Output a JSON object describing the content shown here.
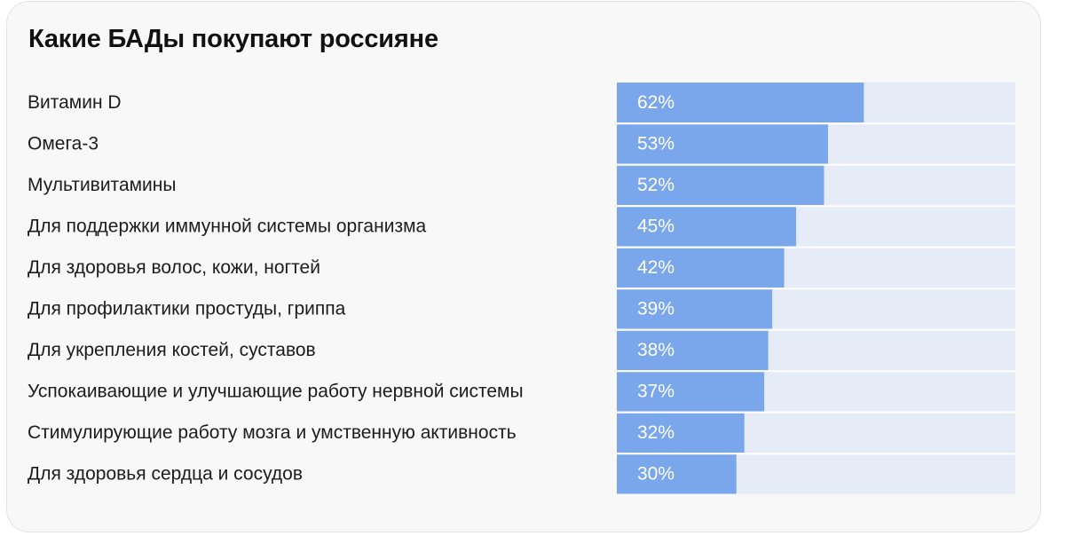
{
  "chart_data": {
    "type": "bar",
    "orientation": "horizontal",
    "title": "Какие БАДы покупают россияне",
    "categories": [
      "Витамин D",
      "Омега-3",
      "Мультивитамины",
      "Для поддержки иммунной системы организма",
      "Для здоровья волос, кожи, ногтей",
      "Для профилактики простуды, гриппа",
      "Для укрепления костей, суставов",
      "Успокаивающие и улучшающие работу нервной системы",
      "Стимулирующие работу мозга и умственную активность",
      "Для здоровья сердца и сосудов"
    ],
    "values": [
      62,
      53,
      52,
      45,
      42,
      39,
      38,
      37,
      32,
      30
    ],
    "value_labels": [
      "62%",
      "53%",
      "52%",
      "45%",
      "42%",
      "39%",
      "38%",
      "37%",
      "32%",
      "30%"
    ],
    "xlim": [
      0,
      100
    ],
    "unit": "%",
    "colors": {
      "bar": "#7aa7ec",
      "track": "#e6ecf7",
      "card": "#f8f8f8",
      "text": "#1c1c1c"
    }
  }
}
